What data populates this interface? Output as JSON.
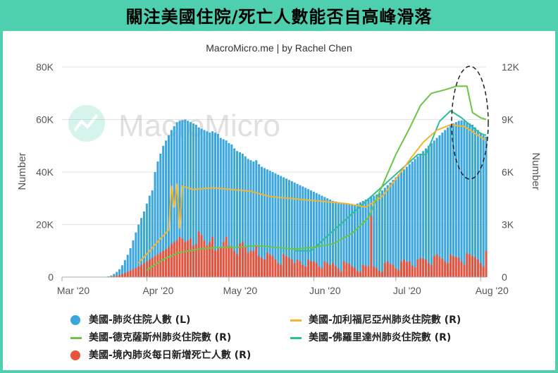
{
  "header": {
    "title": "關注美國住院/死亡人數能否自高峰滑落"
  },
  "colors": {
    "accent": "#4ecfae",
    "blue": "#3aa6dc",
    "orange": "#f2b531",
    "green": "#6cc644",
    "teal": "#2dbd98",
    "red": "#e8533c"
  },
  "chart_data": {
    "type": "bar",
    "subtitle": "MacroMicro.me | by Rachel Chen",
    "watermark": "MacroMicro",
    "x_ticks": [
      "Mar '20",
      "Apr '20",
      "May '20",
      "Jun '20",
      "Jul '20",
      "Aug '20"
    ],
    "y_left": {
      "label": "Number",
      "ticks": [
        "0",
        "20K",
        "40K",
        "60K",
        "80K"
      ],
      "min": 0,
      "max": 80000
    },
    "y_right": {
      "label": "Number",
      "ticks": [
        "0",
        "3K",
        "6K",
        "9K",
        "12K"
      ],
      "min": 0,
      "max": 12000
    },
    "date_range": [
      "2020-03-01",
      "2020-08-03"
    ],
    "series": [
      {
        "name": "美國-肺炎住院人數 (L)",
        "kind": "bar",
        "axis": "left",
        "color": "#3aa6dc",
        "start": "2020-03-18",
        "values": [
          300,
          600,
          1200,
          2000,
          3000,
          4500,
          6500,
          8500,
          11000,
          14000,
          17000,
          20000,
          22500,
          25000,
          28000,
          31000,
          33000,
          40000,
          44000,
          47000,
          50000,
          52000,
          54000,
          56000,
          57500,
          59000,
          59500,
          59800,
          60000,
          59500,
          59000,
          58500,
          58000,
          57000,
          56500,
          56000,
          55500,
          55000,
          55500,
          55000,
          54500,
          53000,
          52500,
          52000,
          51000,
          50500,
          49000,
          48000,
          47500,
          47000,
          46000,
          45000,
          44500,
          44000,
          44500,
          43000,
          42000,
          41500,
          41000,
          40500,
          40000,
          39500,
          39000,
          38500,
          38000,
          37500,
          37000,
          36500,
          36000,
          35500,
          35000,
          34500,
          34000,
          33500,
          33000,
          32500,
          32000,
          31500,
          31000,
          30500,
          30000,
          29500,
          29000,
          28800,
          28500,
          28200,
          28000,
          27800,
          27600,
          27500,
          27500,
          28000,
          28500,
          29000,
          29500,
          30000,
          30500,
          31000,
          31500,
          32000,
          33000,
          34000,
          35000,
          36000,
          37000,
          38000,
          39000,
          40000,
          41000,
          42000,
          43000,
          44000,
          45000,
          46000,
          47000,
          48000,
          49000,
          50000,
          51000,
          52000,
          53000,
          54000,
          55000,
          56000,
          57000,
          58000,
          58500,
          59000,
          59500,
          59700,
          59500,
          59000,
          58500,
          58000,
          57000,
          56000,
          55000,
          54000,
          53500,
          53000,
          52500
        ]
      },
      {
        "name": "美國-境內肺炎每日新增死亡人數 (R)",
        "kind": "bar",
        "axis": "right",
        "color": "#e8533c",
        "start": "2020-03-18",
        "values": [
          20,
          40,
          60,
          90,
          120,
          180,
          240,
          300,
          380,
          450,
          520,
          600,
          700,
          800,
          900,
          1000,
          1100,
          1200,
          1300,
          1400,
          1500,
          1600,
          1700,
          1900,
          2000,
          2100,
          2300,
          2200,
          2000,
          2100,
          2200,
          1800,
          1900,
          2600,
          2400,
          2100,
          1800,
          2000,
          2300,
          1500,
          1600,
          1700,
          2000,
          2300,
          1800,
          1700,
          1500,
          1300,
          1900,
          2000,
          1700,
          1400,
          1500,
          1500,
          1800,
          1200,
          1100,
          1000,
          1400,
          1300,
          1200,
          1000,
          800,
          700,
          1300,
          1200,
          1100,
          1000,
          800,
          1000,
          900,
          700,
          600,
          1000,
          900,
          900,
          800,
          600,
          500,
          900,
          800,
          700,
          800,
          650,
          500,
          300,
          900,
          800,
          750,
          600,
          550,
          350,
          300,
          700,
          650,
          600,
          3500,
          600,
          500,
          350,
          300,
          800,
          900,
          750,
          700,
          500,
          400,
          900,
          1000,
          850,
          900,
          650,
          550,
          1000,
          1100,
          1050,
          1000,
          800,
          700,
          1200,
          1300,
          1150,
          1050,
          900,
          800,
          1300,
          1200,
          1150,
          1100,
          900,
          700,
          1350,
          1300,
          1200,
          1150,
          1000,
          800,
          600,
          1500,
          1300,
          600
        ]
      },
      {
        "name": "美國-加利福尼亞州肺炎住院數 (R)",
        "kind": "line",
        "axis": "right",
        "color": "#f2b531",
        "points": [
          [
            "2020-03-29",
            800
          ],
          [
            "2020-04-02",
            1500
          ],
          [
            "2020-04-06",
            2200
          ],
          [
            "2020-04-09",
            2700
          ],
          [
            "2020-04-10",
            5200
          ],
          [
            "2020-04-11",
            4000
          ],
          [
            "2020-04-12",
            5300
          ],
          [
            "2020-04-13",
            2800
          ],
          [
            "2020-04-14",
            5200
          ],
          [
            "2020-04-18",
            5000
          ],
          [
            "2020-04-25",
            5100
          ],
          [
            "2020-05-02",
            5000
          ],
          [
            "2020-05-09",
            4900
          ],
          [
            "2020-05-16",
            4600
          ],
          [
            "2020-05-23",
            4500
          ],
          [
            "2020-05-30",
            4400
          ],
          [
            "2020-06-06",
            4300
          ],
          [
            "2020-06-13",
            4200
          ],
          [
            "2020-06-20",
            4000
          ],
          [
            "2020-06-26",
            4600
          ],
          [
            "2020-07-01",
            5600
          ],
          [
            "2020-07-07",
            6900
          ],
          [
            "2020-07-11",
            7700
          ],
          [
            "2020-07-16",
            8400
          ],
          [
            "2020-07-21",
            8700
          ],
          [
            "2020-07-26",
            8600
          ],
          [
            "2020-07-31",
            8100
          ],
          [
            "2020-08-03",
            7800
          ]
        ]
      },
      {
        "name": "美國-德克薩斯州肺炎住院數 (R)",
        "kind": "line",
        "axis": "right",
        "color": "#6cc644",
        "points": [
          [
            "2020-04-01",
            400
          ],
          [
            "2020-04-08",
            1100
          ],
          [
            "2020-04-13",
            1400
          ],
          [
            "2020-04-20",
            1600
          ],
          [
            "2020-04-27",
            1700
          ],
          [
            "2020-05-04",
            1700
          ],
          [
            "2020-05-11",
            1800
          ],
          [
            "2020-05-18",
            1700
          ],
          [
            "2020-05-25",
            1600
          ],
          [
            "2020-06-01",
            1700
          ],
          [
            "2020-06-08",
            1900
          ],
          [
            "2020-06-15",
            2500
          ],
          [
            "2020-06-21",
            3400
          ],
          [
            "2020-06-26",
            5200
          ],
          [
            "2020-07-01",
            7000
          ],
          [
            "2020-07-06",
            8500
          ],
          [
            "2020-07-10",
            9800
          ],
          [
            "2020-07-14",
            10500
          ],
          [
            "2020-07-19",
            10700
          ],
          [
            "2020-07-23",
            10900
          ],
          [
            "2020-07-27",
            10900
          ],
          [
            "2020-07-29",
            9400
          ],
          [
            "2020-08-01",
            9100
          ],
          [
            "2020-08-03",
            9000
          ]
        ]
      },
      {
        "name": "美國-佛羅里達州肺炎住院數 (R)",
        "kind": "line",
        "axis": "right",
        "color": "#2dbd98",
        "points": [
          [
            "2020-05-25",
            1500
          ],
          [
            "2020-05-31",
            1500
          ],
          [
            "2020-07-09",
            7000
          ],
          [
            "2020-07-12",
            7000
          ],
          [
            "2020-07-17",
            8900
          ],
          [
            "2020-07-21",
            9500
          ],
          [
            "2020-07-25",
            9100
          ],
          [
            "2020-07-28",
            8700
          ],
          [
            "2020-08-01",
            8200
          ],
          [
            "2020-08-03",
            8100
          ]
        ]
      }
    ],
    "annotation": "dashed-ellipse-around-recent-peak"
  }
}
